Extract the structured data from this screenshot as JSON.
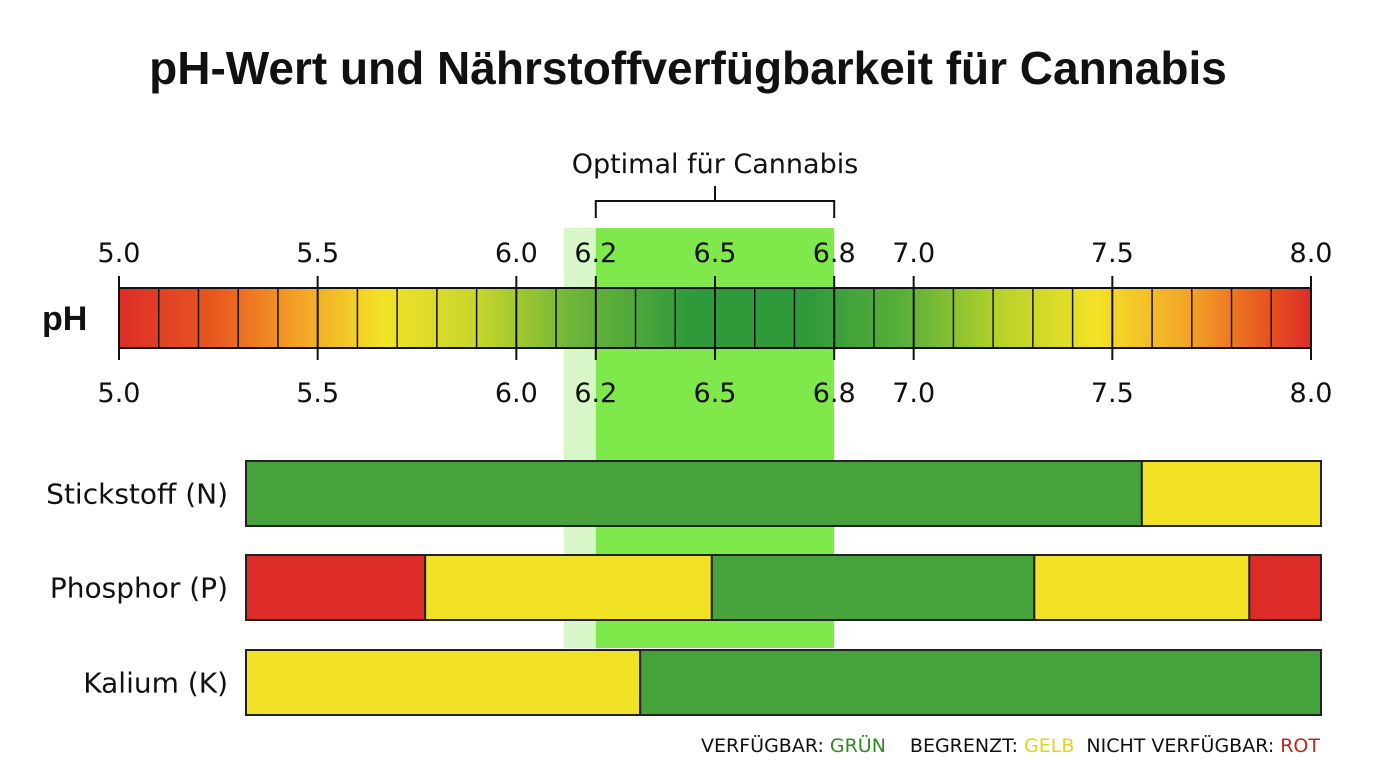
{
  "colors": {
    "available": "#46a23a",
    "limited": "#f1e226",
    "unavailable": "#dd2c28",
    "optimal_band": "#7fe84a",
    "optimal_band_light": "#d8f7c8"
  },
  "chart_data": {
    "type": "bar",
    "title": "pH-Wert und Nährstoffverfügbarkeit für Cannabis",
    "axis_label": "pH",
    "xlim": [
      5.0,
      8.0
    ],
    "ticks_top": [
      {
        "value": 5.0,
        "label": "5.0"
      },
      {
        "value": 5.5,
        "label": "5.5"
      },
      {
        "value": 6.0,
        "label": "6.0"
      },
      {
        "value": 6.2,
        "label": "6.2"
      },
      {
        "value": 6.5,
        "label": "6.5"
      },
      {
        "value": 6.8,
        "label": "6.8"
      },
      {
        "value": 7.0,
        "label": "7.0"
      },
      {
        "value": 7.5,
        "label": "7.5"
      },
      {
        "value": 8.0,
        "label": "8.0"
      }
    ],
    "ticks_bottom": [
      {
        "value": 5.0,
        "label": "5.0"
      },
      {
        "value": 5.5,
        "label": "5.5"
      },
      {
        "value": 6.0,
        "label": "6.0"
      },
      {
        "value": 6.2,
        "label": "6.2"
      },
      {
        "value": 6.5,
        "label": "6.5"
      },
      {
        "value": 6.8,
        "label": "6.8"
      },
      {
        "value": 7.0,
        "label": "7.0"
      },
      {
        "value": 7.5,
        "label": "7.5"
      },
      {
        "value": 8.0,
        "label": "8.0"
      }
    ],
    "optimal": {
      "label": "Optimal für Cannabis",
      "start": 6.2,
      "end": 6.8,
      "soft_start": 6.12
    },
    "nutrients": [
      {
        "name": "Stickstoff (N)",
        "segments": [
          {
            "start": 5.0,
            "end": 7.5,
            "status": "available"
          },
          {
            "start": 7.5,
            "end": 8.0,
            "status": "limited"
          }
        ]
      },
      {
        "name": "Phosphor (P)",
        "segments": [
          {
            "start": 5.0,
            "end": 5.5,
            "status": "unavailable"
          },
          {
            "start": 5.5,
            "end": 6.3,
            "status": "limited"
          },
          {
            "start": 6.3,
            "end": 7.2,
            "status": "available"
          },
          {
            "start": 7.2,
            "end": 7.8,
            "status": "limited"
          },
          {
            "start": 7.8,
            "end": 8.0,
            "status": "unavailable"
          }
        ]
      },
      {
        "name": "Kalium (K)",
        "segments": [
          {
            "start": 5.0,
            "end": 6.1,
            "status": "limited"
          },
          {
            "start": 6.1,
            "end": 8.0,
            "status": "available"
          }
        ]
      }
    ],
    "legend": [
      {
        "key": "available",
        "label": "VERFÜGBAR:",
        "value": "GRÜN",
        "color": "#2e8b1f"
      },
      {
        "key": "limited",
        "label": "BEGRENZT:",
        "value": "GELB",
        "color": "#e6d21a"
      },
      {
        "key": "unavailable",
        "label": "NICHT VERFÜGBAR:",
        "value": "ROT",
        "color": "#c0281f"
      }
    ]
  }
}
